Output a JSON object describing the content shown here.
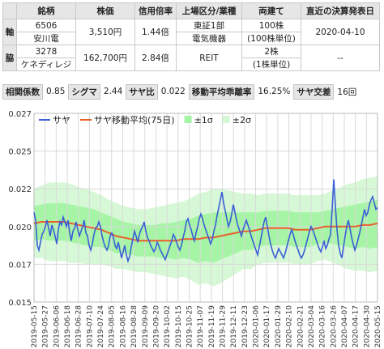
{
  "table": {
    "headers": [
      "",
      "銘柄",
      "株価",
      "信用倍率",
      "上場区分/業種",
      "両建て",
      "直近の決算発表日"
    ],
    "rows": [
      {
        "label": "軸",
        "code": "6506",
        "name": "安川電",
        "price": "3,510円",
        "credit_ratio": "1.44倍",
        "market1": "東証1部",
        "market2": "電気機器",
        "hedge1": "100株",
        "hedge2": "(100株単位)",
        "earnings_date": "2020-04-10"
      },
      {
        "label": "脇",
        "code": "3278",
        "name": "ケネディレジ",
        "price": "162,700円",
        "credit_ratio": "2.84倍",
        "market1": "REIT",
        "market2": "",
        "hedge1": "2株",
        "hedge2": "(1株単位)",
        "earnings_date": "--"
      }
    ]
  },
  "stats": {
    "correlation_label": "相関係数",
    "correlation_value": "0.85",
    "sigma_label": "シグマ",
    "sigma_value": "2.44",
    "spread_ratio_label": "サヤ比",
    "spread_ratio_value": "0.022",
    "ma_deviation_label": "移動平均乖離率",
    "ma_deviation_value": "16.25%",
    "crossover_label": "サヤ交差",
    "crossover_value": "16回"
  },
  "colors": {
    "spread": "#3a5fd6",
    "ma": "#e8602c",
    "band1": "#a6f5a6",
    "band2": "#d6f8d6",
    "grid": "#d9d9d9"
  },
  "chart_data": {
    "type": "line",
    "legend": [
      "サヤ",
      "サヤ移動平均(75日)",
      "±1σ",
      "±2σ"
    ],
    "legend_position": "top-left",
    "ylim": [
      0.015,
      0.027
    ],
    "y_ticks": [
      "0.027",
      "0.025",
      "0.022",
      "0.020",
      "0.017",
      "0.015"
    ],
    "x_ticks": [
      "2019-05-15",
      "2019-05-27",
      "2019-06-06",
      "2019-06-18",
      "2019-06-28",
      "2019-07-10",
      "2019-07-24",
      "2019-08-05",
      "2019-08-16",
      "2019-08-28",
      "2019-09-09",
      "2019-09-20",
      "2019-10-02",
      "2019-10-15",
      "2019-10-25",
      "2019-11-07",
      "2019-11-19",
      "2019-11-29",
      "2019-12-11",
      "2019-12-23",
      "2020-01-06",
      "2020-01-17",
      "2020-01-29",
      "2020-02-10",
      "2020-02-21",
      "2020-03-04",
      "2020-03-16",
      "2020-03-26",
      "2020-04-07",
      "2020-04-17",
      "2020-04-30",
      "2020-05-15"
    ],
    "grid": true,
    "series": [
      {
        "name": "サヤ",
        "values": [
          0.0207,
          0.0202,
          0.0186,
          0.0183,
          0.0188,
          0.0193,
          0.0195,
          0.0198,
          0.0202,
          0.0197,
          0.0192,
          0.0199,
          0.0196,
          0.0192,
          0.0187,
          0.0196,
          0.0201,
          0.0199,
          0.0204,
          0.0201,
          0.0198,
          0.0202,
          0.0194,
          0.0189,
          0.0195,
          0.0197,
          0.0201,
          0.0196,
          0.0192,
          0.0195,
          0.0198,
          0.0202,
          0.0194,
          0.0192,
          0.0186,
          0.0183,
          0.0187,
          0.0193,
          0.0197,
          0.0198,
          0.0201,
          0.0198,
          0.0192,
          0.0188,
          0.0185,
          0.0183,
          0.0186,
          0.0192,
          0.0194,
          0.0191,
          0.0186,
          0.0184,
          0.0188,
          0.0183,
          0.0178,
          0.0182,
          0.0186,
          0.018,
          0.0176,
          0.0179,
          0.0185,
          0.019,
          0.0195,
          0.0192,
          0.0188,
          0.0193,
          0.0196,
          0.0198,
          0.0201,
          0.0195,
          0.0191,
          0.0189,
          0.0186,
          0.0184,
          0.0182,
          0.0184,
          0.0188,
          0.0186,
          0.0183,
          0.0181,
          0.0179,
          0.0177,
          0.018,
          0.0183,
          0.0186,
          0.0189,
          0.0193,
          0.0191,
          0.0188,
          0.0185,
          0.0183,
          0.0186,
          0.0191,
          0.0195,
          0.0201,
          0.0203,
          0.0199,
          0.0196,
          0.0192,
          0.0189,
          0.0194,
          0.0198,
          0.0203,
          0.0206,
          0.0203,
          0.0199,
          0.0196,
          0.0193,
          0.019,
          0.0187,
          0.019,
          0.0195,
          0.0199,
          0.0205,
          0.021,
          0.0215,
          0.022,
          0.0213,
          0.0208,
          0.0203,
          0.0198,
          0.0201,
          0.0206,
          0.0212,
          0.0207,
          0.0202,
          0.0198,
          0.0195,
          0.0192,
          0.0196,
          0.0199,
          0.0202,
          0.0199,
          0.0196,
          0.0192,
          0.0189,
          0.0186,
          0.0183,
          0.018,
          0.0185,
          0.019,
          0.0196,
          0.0201,
          0.0204,
          0.0198,
          0.0192,
          0.0187,
          0.0183,
          0.018,
          0.0178,
          0.0181,
          0.0184,
          0.0182,
          0.018,
          0.0178,
          0.0181,
          0.0185,
          0.0189,
          0.0193,
          0.0196,
          0.0193,
          0.0189,
          0.0186,
          0.0183,
          0.018,
          0.0178,
          0.018,
          0.0183,
          0.0187,
          0.0191,
          0.0195,
          0.0198,
          0.0196,
          0.0193,
          0.019,
          0.0187,
          0.0184,
          0.0182,
          0.0185,
          0.0189,
          0.0184,
          0.0186,
          0.019,
          0.0193,
          0.0209,
          0.0228,
          0.0211,
          0.0196,
          0.0186,
          0.0181,
          0.0178,
          0.0185,
          0.0192,
          0.0198,
          0.0202,
          0.0197,
          0.0191,
          0.0187,
          0.0183,
          0.0186,
          0.019,
          0.0194,
          0.0199,
          0.0204,
          0.0209,
          0.0205,
          0.0207,
          0.0212,
          0.0215,
          0.0217,
          0.0213,
          0.0209,
          0.021
        ]
      },
      {
        "name": "サヤ移動平均(75日)",
        "values": [
          0.02,
          0.0201,
          0.0201,
          0.0201,
          0.0201,
          0.02,
          0.0199,
          0.0198,
          0.0197,
          0.0196,
          0.0194,
          0.0192,
          0.0191,
          0.019,
          0.0189,
          0.0189,
          0.0189,
          0.0189,
          0.0189,
          0.0189,
          0.019,
          0.019,
          0.019,
          0.0191,
          0.0191,
          0.0192,
          0.0193,
          0.0194,
          0.0195,
          0.0195,
          0.0196,
          0.0197,
          0.0197,
          0.0197,
          0.0197,
          0.0196,
          0.0196,
          0.0196,
          0.0197,
          0.0198,
          0.0198,
          0.0198,
          0.0198,
          0.0198,
          0.0199,
          0.0199,
          0.02
        ]
      },
      {
        "name": "±1σ",
        "upper": [
          0.0211,
          0.0212,
          0.0213,
          0.0213,
          0.0213,
          0.0212,
          0.0211,
          0.021,
          0.0209,
          0.0207,
          0.0205,
          0.0203,
          0.0201,
          0.02,
          0.0199,
          0.0199,
          0.0199,
          0.02,
          0.02,
          0.0201,
          0.0202,
          0.0203,
          0.0205,
          0.0206,
          0.0207,
          0.0207,
          0.0207,
          0.0207,
          0.0207,
          0.0207,
          0.0207,
          0.0208,
          0.0208,
          0.0208,
          0.0208,
          0.0207,
          0.0207,
          0.0207,
          0.0207,
          0.0208,
          0.0209,
          0.021,
          0.0211,
          0.0212,
          0.0213,
          0.0214,
          0.0215
        ],
        "lower": [
          0.0189,
          0.019,
          0.0189,
          0.0189,
          0.0189,
          0.0188,
          0.0187,
          0.0186,
          0.0185,
          0.0185,
          0.0183,
          0.0181,
          0.0181,
          0.018,
          0.0179,
          0.0179,
          0.0179,
          0.0178,
          0.0178,
          0.0177,
          0.0178,
          0.0177,
          0.0175,
          0.0176,
          0.0175,
          0.0177,
          0.0179,
          0.0181,
          0.0183,
          0.0183,
          0.0185,
          0.0186,
          0.0186,
          0.0186,
          0.0186,
          0.0185,
          0.0185,
          0.0185,
          0.0187,
          0.0188,
          0.0187,
          0.0186,
          0.0185,
          0.0184,
          0.0185,
          0.0184,
          0.0185
        ]
      },
      {
        "name": "±2σ",
        "upper": [
          0.0222,
          0.0224,
          0.0226,
          0.0226,
          0.0226,
          0.0225,
          0.0223,
          0.0222,
          0.022,
          0.0218,
          0.0215,
          0.0213,
          0.0211,
          0.021,
          0.0209,
          0.0209,
          0.021,
          0.0211,
          0.0212,
          0.0213,
          0.0214,
          0.0216,
          0.0219,
          0.022,
          0.0222,
          0.0222,
          0.0221,
          0.022,
          0.0219,
          0.0219,
          0.0218,
          0.0219,
          0.0219,
          0.0219,
          0.0219,
          0.0218,
          0.0218,
          0.0218,
          0.0218,
          0.0219,
          0.0221,
          0.0223,
          0.0225,
          0.0226,
          0.0228,
          0.0229,
          0.023
        ],
        "lower": [
          0.0178,
          0.0178,
          0.0176,
          0.0176,
          0.0176,
          0.0175,
          0.0175,
          0.0174,
          0.0174,
          0.0174,
          0.0173,
          0.0171,
          0.0171,
          0.017,
          0.0169,
          0.0169,
          0.0168,
          0.0167,
          0.0166,
          0.0165,
          0.0166,
          0.0164,
          0.0161,
          0.0162,
          0.016,
          0.0162,
          0.0165,
          0.0168,
          0.0171,
          0.0171,
          0.0174,
          0.0175,
          0.0175,
          0.0175,
          0.0175,
          0.0174,
          0.0174,
          0.0174,
          0.0176,
          0.0177,
          0.0175,
          0.0173,
          0.0171,
          0.017,
          0.017,
          0.0169,
          0.017
        ]
      }
    ]
  }
}
